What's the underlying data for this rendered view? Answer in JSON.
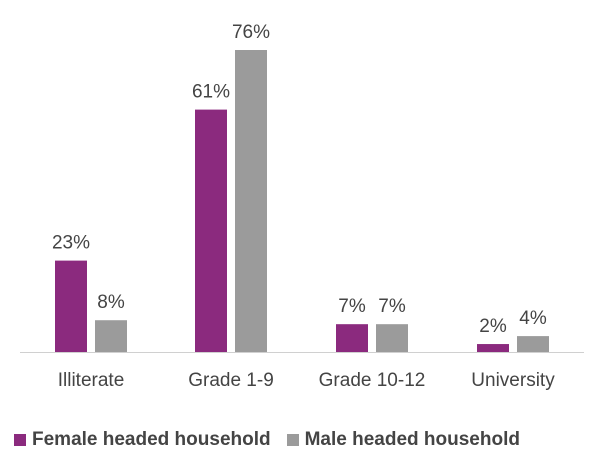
{
  "chart_data": {
    "type": "bar",
    "title": "",
    "xlabel": "",
    "ylabel": "",
    "categories": [
      "Illiterate",
      "Grade 1-9",
      "Grade 10-12",
      "University"
    ],
    "series": [
      {
        "name": "Female headed household",
        "values": [
          23,
          61,
          7,
          2
        ],
        "labels": [
          "23%",
          "61%",
          "7%",
          "2%"
        ],
        "color": "#8b2a7e"
      },
      {
        "name": "Male headed household",
        "values": [
          8,
          76,
          7,
          4
        ],
        "labels": [
          "8%",
          "76%",
          "7%",
          "4%"
        ],
        "color": "#9b9b9b"
      }
    ],
    "ylim": [
      0,
      76
    ],
    "grid": false,
    "legend_position": "bottom-left",
    "axis_color": "#d0d0d0",
    "text_color": "#444444"
  }
}
